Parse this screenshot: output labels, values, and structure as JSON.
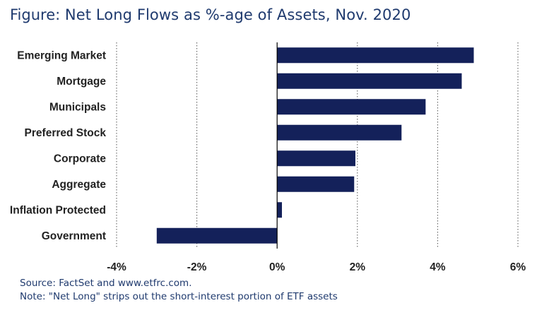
{
  "title_lead": "Figure:",
  "title_rest": "Net Long Flows as %-age of Assets, Nov. 2020",
  "notes": [
    "Source: FactSet and www.etfrc.com.",
    "Note: \"Net Long\" strips out the short-interest portion of ETF assets"
  ],
  "colors": {
    "bar": "#14215a",
    "title": "#1f3a6e",
    "grid": "#555555"
  },
  "chart_data": {
    "type": "bar",
    "orientation": "horizontal",
    "categories": [
      "Emerging Market",
      "Mortgage",
      "Municipals",
      "Preferred Stock",
      "Corporate",
      "Aggregate",
      "Inflation Protected",
      "Government"
    ],
    "values": [
      4.9,
      4.6,
      3.7,
      3.1,
      1.95,
      1.92,
      0.12,
      -3.0
    ],
    "xlim": [
      -4,
      6
    ],
    "xticks": [
      -4,
      -2,
      0,
      2,
      4,
      6
    ],
    "xtick_labels": [
      "-4%",
      "-2%",
      "0%",
      "2%",
      "4%",
      "6%"
    ],
    "grid": "vertical dotted",
    "legend": "none"
  }
}
